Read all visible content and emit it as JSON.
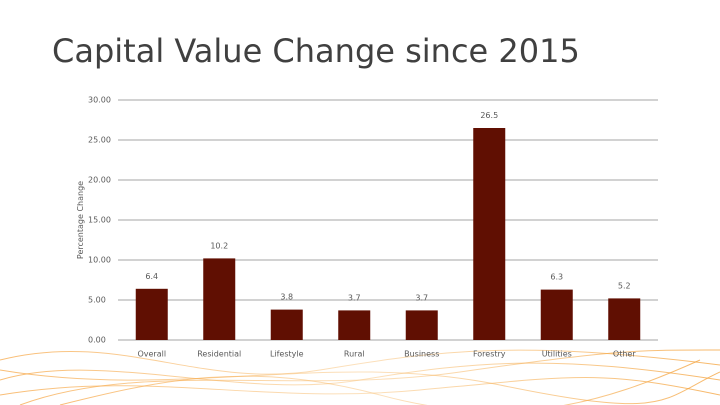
{
  "chart_data": {
    "type": "bar",
    "title": "Capital Value Change since 2015",
    "y_label": "Percentage Change",
    "categories": [
      "Overall",
      "Residential",
      "Lifestyle",
      "Rural",
      "Business",
      "Forestry",
      "Utilities",
      "Other"
    ],
    "values": [
      6.4,
      10.2,
      3.8,
      3.7,
      3.7,
      26.5,
      6.3,
      5.2
    ],
    "color": "#600f02",
    "ylim": [
      0,
      30
    ],
    "yticks": [
      {
        "value": 0,
        "label": "0.00"
      },
      {
        "value": 5,
        "label": "5.00"
      },
      {
        "value": 10,
        "label": "10.00"
      },
      {
        "value": 15,
        "label": "15.00"
      },
      {
        "value": 20,
        "label": "20.00"
      },
      {
        "value": 25,
        "label": "25.00"
      },
      {
        "value": 30,
        "label": "30.00"
      }
    ],
    "grid": true
  }
}
